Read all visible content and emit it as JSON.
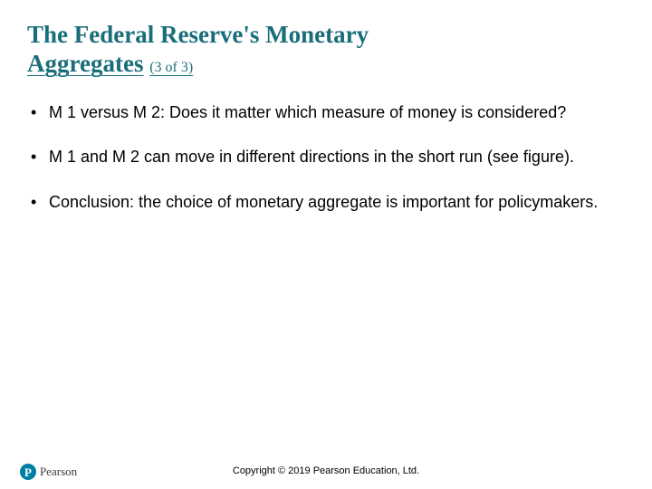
{
  "title_line1": "The Federal Reserve's Monetary",
  "title_line2_main": "Aggregates",
  "title_line2_sub": "(3 of 3)",
  "bullets": [
    "M 1 versus M 2: Does it matter which measure of money is considered?",
    "M 1 and M 2 can move in different directions in the short run (see figure).",
    "Conclusion: the choice of monetary aggregate is important for policymakers."
  ],
  "copyright": "Copyright © 2019 Pearson Education, Ltd.",
  "logo_letter": "P",
  "logo_name": "Pearson",
  "colors": {
    "title": "#1a6e7a",
    "text": "#000000",
    "logo_bg": "#007fa3",
    "background": "#ffffff"
  }
}
